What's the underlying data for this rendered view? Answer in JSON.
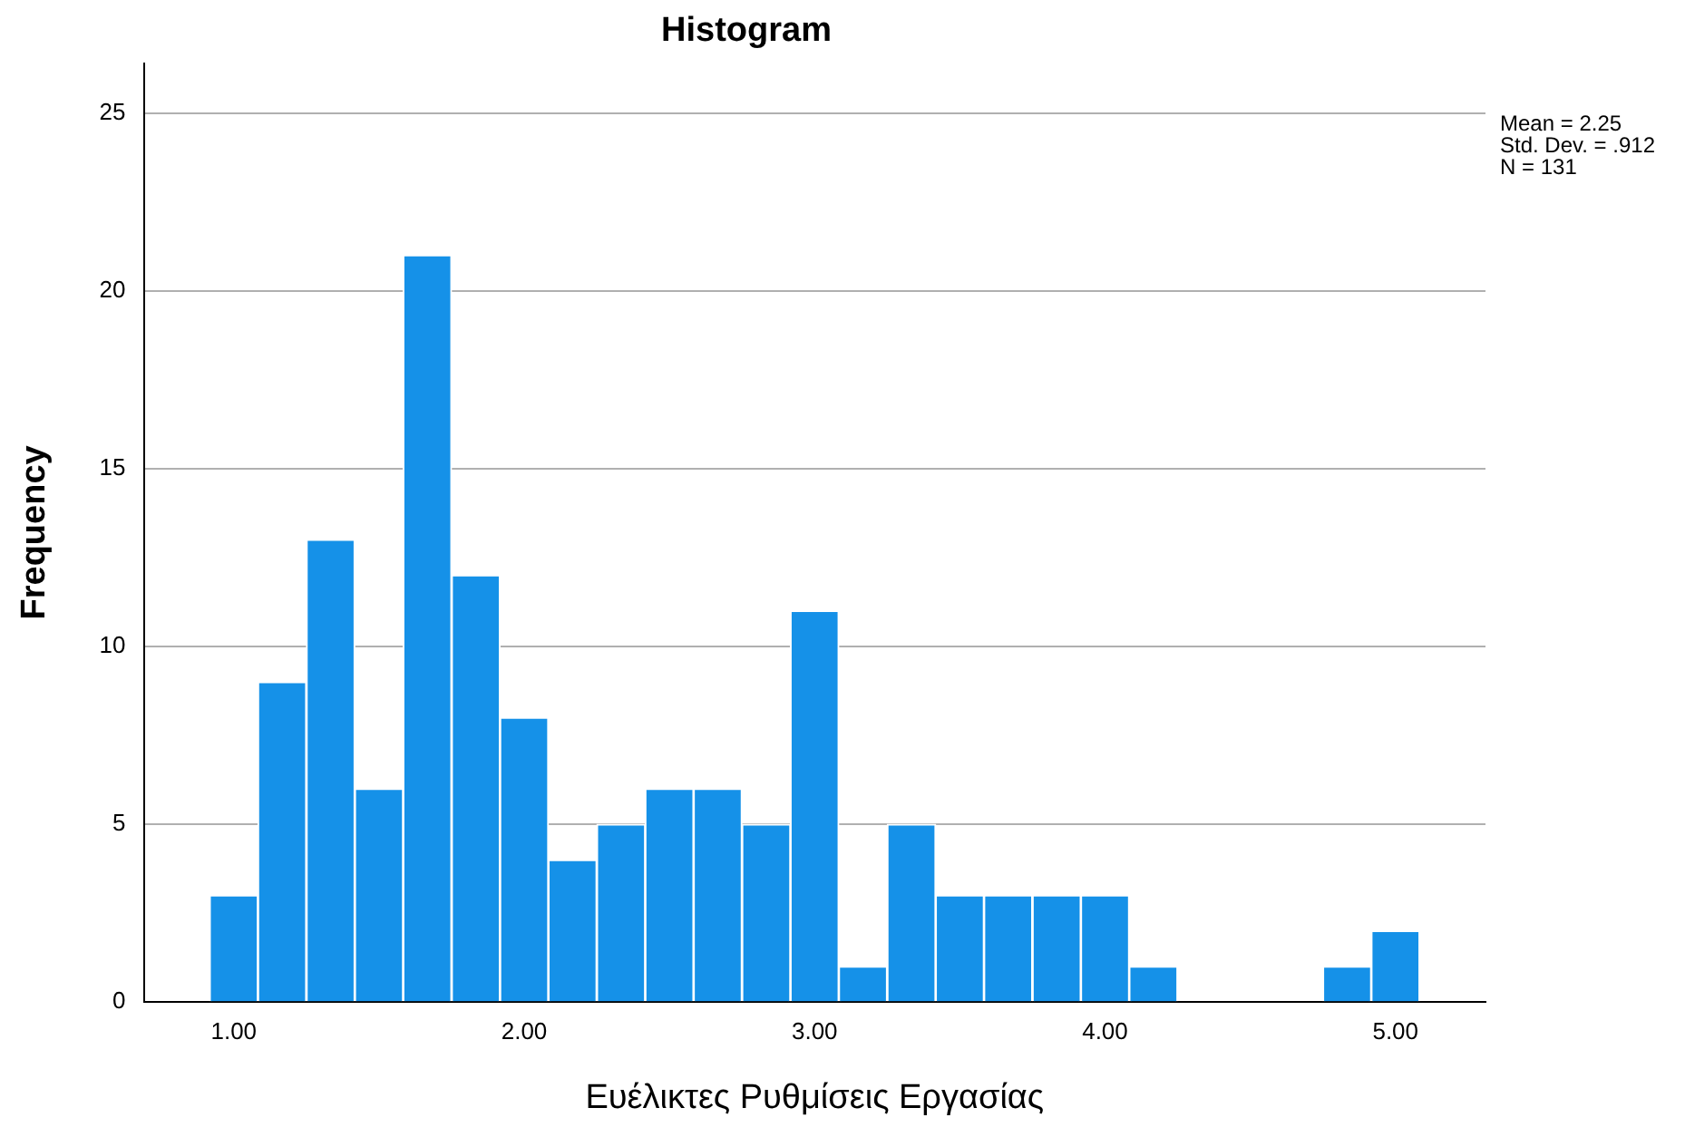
{
  "chart_data": {
    "type": "histogram",
    "title": "Histogram",
    "xlabel": "Ευέλικτες Ρυθμίσεις Εργασίας",
    "ylabel": "Frequency",
    "bins": [
      0.917,
      1.083,
      1.25,
      1.417,
      1.583,
      1.75,
      1.917,
      2.083,
      2.25,
      2.417,
      2.583,
      2.75,
      2.917,
      3.083,
      3.25,
      3.417,
      3.583,
      3.75,
      3.917,
      4.083,
      4.25,
      4.417,
      4.583,
      4.75,
      4.917,
      5.083
    ],
    "values": [
      3,
      9,
      13,
      6,
      21,
      12,
      8,
      4,
      5,
      6,
      6,
      5,
      11,
      1,
      5,
      3,
      3,
      3,
      3,
      1,
      0,
      0,
      0,
      1,
      2
    ],
    "color": "#1591e8",
    "xlim": [
      0.69,
      5.31
    ],
    "xticks": [
      {
        "value": 1,
        "label": "1.00"
      },
      {
        "value": 2,
        "label": "2.00"
      },
      {
        "value": 3,
        "label": "3.00"
      },
      {
        "value": 4,
        "label": "4.00"
      },
      {
        "value": 5,
        "label": "5.00"
      }
    ],
    "ylim": [
      0,
      26.4
    ],
    "yticks": [
      0,
      5,
      10,
      15,
      20,
      25
    ],
    "grid": "y",
    "legend": false,
    "annotations": [
      "Mean = 2.25",
      "Std. Dev. = .912",
      "N = 131"
    ]
  }
}
